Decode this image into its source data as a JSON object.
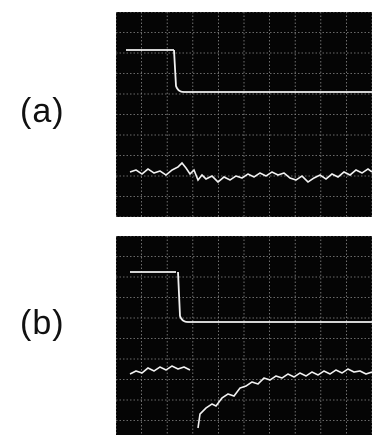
{
  "panels": [
    {
      "label": "(a)",
      "trace_top": "step-down",
      "trace_bottom": "noisy-flat"
    },
    {
      "label": "(b)",
      "trace_top": "step-down",
      "trace_bottom": "drop-and-recovery"
    }
  ],
  "colors": {
    "screen": "#050505",
    "grid": "#8a8a8a",
    "trace": "#f2f2f2",
    "label": "#111111"
  }
}
